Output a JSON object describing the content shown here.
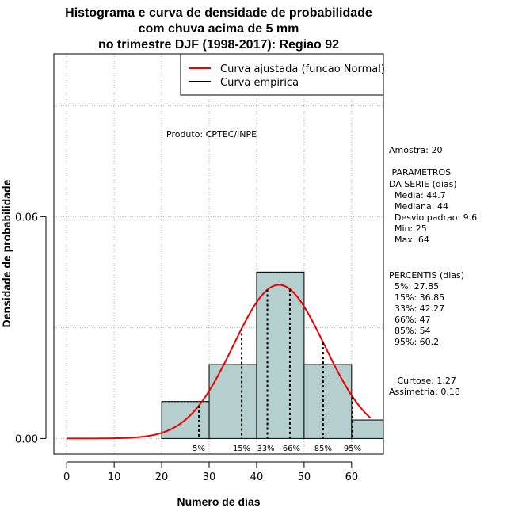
{
  "chart_data": {
    "type": "bar",
    "title_lines": [
      "Histograma e curva de densidade de probabilidade",
      "com chuva acima de 5 mm",
      "no trimestre DJF (1998-2017): Regiao 92"
    ],
    "xlabel": "Numero de dias",
    "ylabel": "Densidade de probabilidade",
    "xlim": [
      -2.7,
      66.7
    ],
    "ylim": [
      -0.0042,
      0.104
    ],
    "x_ticks": [
      0,
      10,
      20,
      30,
      40,
      50,
      60
    ],
    "y_ticks": [
      0.0,
      0.06
    ],
    "y_tick_labels": [
      "0.00",
      "0.06"
    ],
    "grid": true,
    "bin_width": 10,
    "bins": [
      {
        "start": 20,
        "end": 30,
        "density": 0.01
      },
      {
        "start": 30,
        "end": 40,
        "density": 0.02
      },
      {
        "start": 40,
        "end": 50,
        "density": 0.045
      },
      {
        "start": 50,
        "end": 60,
        "density": 0.02
      },
      {
        "start": 60,
        "end": 70,
        "density": 0.005
      }
    ],
    "series": [
      {
        "name": "Curva ajustada (funcao Normal)",
        "color": "#ee0000",
        "type": "normal_fit",
        "mean": 44.7,
        "sd": 9.6,
        "x_range": [
          0,
          64
        ]
      },
      {
        "name": "Curva empirica",
        "color": "#000000"
      }
    ],
    "percentile_lines": [
      {
        "x": 27.85,
        "label": "5%"
      },
      {
        "x": 36.85,
        "label": "15%"
      },
      {
        "x": 42.27,
        "label": "33%"
      },
      {
        "x": 47,
        "label": "66%"
      },
      {
        "x": 54,
        "label": "85%"
      },
      {
        "x": 60.2,
        "label": "95%"
      }
    ],
    "annotation": "Produto: CPTEC/INPE",
    "legend_position": "top-right",
    "colors": {
      "bar_fill": "#b5cece",
      "fit_line": "#ee0000",
      "grid": "#b0b0b0"
    }
  },
  "stats_panel": {
    "amostra": "Amostra: 20",
    "parametros_title": [
      " PARAMETROS",
      "DA SERIE (dias)"
    ],
    "parametros": [
      "  Media: 44.7",
      "  Mediana: 44",
      "  Desvio padrao: 9.6",
      "  Min: 25",
      "  Max: 64"
    ],
    "percentis_title": "PERCENTIS (dias)",
    "percentis": [
      "  5%: 27.85",
      "  15%: 36.85",
      "  33%: 42.27",
      "  66%: 47",
      "  85%: 54",
      "  95%: 60.2"
    ],
    "curtose": "   Curtose: 1.27",
    "assimetria": "Assimetria: 0.18"
  }
}
